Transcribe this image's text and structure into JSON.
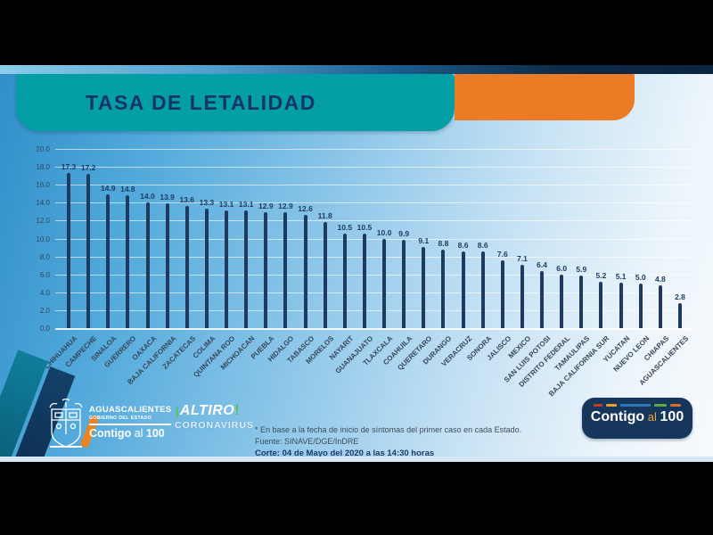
{
  "header": {
    "title": "TASA DE LETALIDAD"
  },
  "chart_data": {
    "type": "bar",
    "title": "TASA DE LETALIDAD",
    "categories": [
      "CHIHUAHUA",
      "CAMPECHE",
      "SINALOA",
      "GUERRERO",
      "OAXACA",
      "BAJA CALIFORNIA",
      "ZACATECAS",
      "COLIMA",
      "QUINTANA ROO",
      "MICHOACAN",
      "PUEBLA",
      "HIDALGO",
      "TABASCO",
      "MORELOS",
      "NAYARIT",
      "GUANAJUATO",
      "TLAXCALA",
      "COAHUILA",
      "QUERETARO",
      "DURANGO",
      "VERACRUZ",
      "SONORA",
      "JALISCO",
      "MEXICO",
      "SAN LUIS POTOSI",
      "DISTRITO FEDERAL",
      "TAMAULIPAS",
      "BAJA CALIFORNIA SUR",
      "YUCATAN",
      "NUEVO LEON",
      "CHIAPAS",
      "AGUASCALIENTES"
    ],
    "values": [
      17.3,
      17.2,
      14.9,
      14.8,
      14.0,
      13.9,
      13.6,
      13.3,
      13.1,
      13.1,
      12.9,
      12.9,
      12.6,
      11.8,
      10.5,
      10.5,
      10.0,
      9.9,
      9.1,
      8.8,
      8.6,
      8.6,
      7.6,
      7.1,
      6.4,
      6.0,
      5.9,
      5.2,
      5.1,
      5.0,
      4.8,
      2.8
    ],
    "xlabel": "",
    "ylabel": "",
    "ylim": [
      0,
      20
    ],
    "ytick_step": 2,
    "ytick_labels": [
      "0.0",
      "2.0",
      "4.0",
      "6.0",
      "8.0",
      "10.0",
      "12.0",
      "14.0",
      "16.0",
      "18.0",
      "20.0"
    ],
    "grid": true,
    "legend": "none",
    "bar_color": "#1e3a5f"
  },
  "footer": {
    "gov": {
      "org": "AGUASCALIENTES",
      "sub": "GOBIERNO DEL ESTADO",
      "slogan_contigo": "Contigo",
      "slogan_al": " al ",
      "slogan_100": "100"
    },
    "altiro": {
      "open_mark": "¡",
      "name": "ALTIRO",
      "close_mark": "!",
      "line2": "CORONAVIRUS"
    },
    "notes": {
      "line1": "* En base a la fecha de inicio de síntomas del primer caso en cada Estado.",
      "line2": "Fuente: SINAVE/DGE/InDRE",
      "line3": "Corte: 04 de Mayo del 2020 a las 14:30 horas"
    },
    "badge": {
      "contigo": "Contigo",
      "al": " al ",
      "hundred": "100",
      "dash_colors": [
        "#c23b33",
        "#e0a32e",
        "#2e78b5",
        "#5fa844",
        "#d86c2f"
      ],
      "dash_widths": [
        10,
        12,
        34,
        14,
        12
      ]
    }
  },
  "colors": {
    "banner_teal": "#049fa4",
    "accent_orange": "#ec7b25",
    "bar_navy": "#1e3a5f",
    "badge_navy": "#16365c",
    "title_navy": "#14356b"
  }
}
